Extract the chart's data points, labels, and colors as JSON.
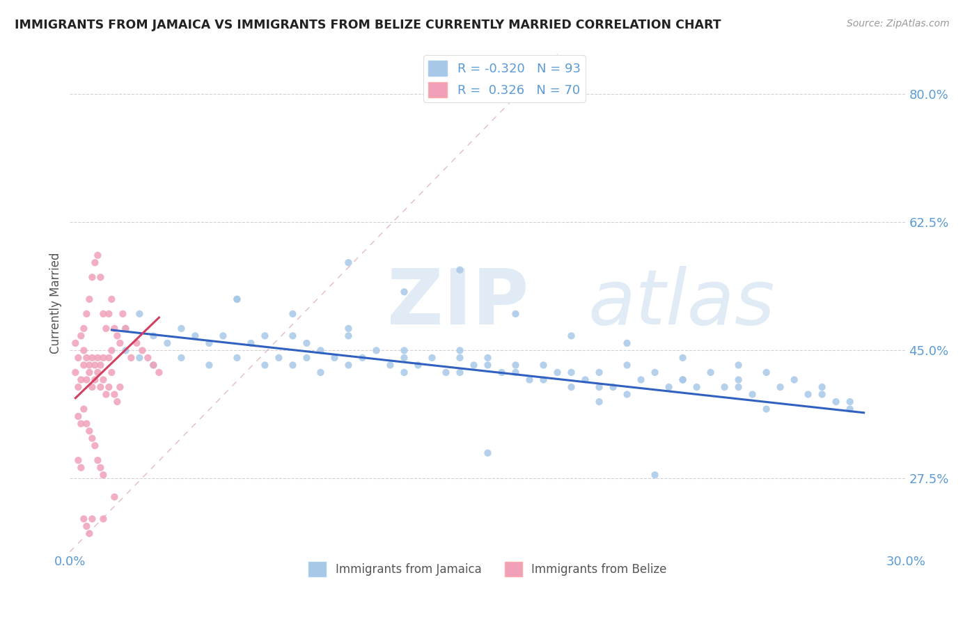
{
  "title": "IMMIGRANTS FROM JAMAICA VS IMMIGRANTS FROM BELIZE CURRENTLY MARRIED CORRELATION CHART",
  "source": "Source: ZipAtlas.com",
  "ylabel": "Currently Married",
  "legend_label_blue": "Immigrants from Jamaica",
  "legend_label_pink": "Immigrants from Belize",
  "R_blue": -0.32,
  "N_blue": 93,
  "R_pink": 0.326,
  "N_pink": 70,
  "xlim": [
    0.0,
    0.3
  ],
  "ylim": [
    0.175,
    0.855
  ],
  "yticks": [
    0.275,
    0.45,
    0.625,
    0.8
  ],
  "ytick_labels": [
    "27.5%",
    "45.0%",
    "62.5%",
    "80.0%"
  ],
  "xticks": [
    0.0,
    0.05,
    0.1,
    0.15,
    0.2,
    0.25,
    0.3
  ],
  "xtick_labels": [
    "0.0%",
    "",
    "",
    "",
    "",
    "",
    "30.0%"
  ],
  "color_blue": "#A8C8E8",
  "color_pink": "#F0A0B8",
  "color_line_blue": "#3060C0",
  "color_line_pink": "#D04060",
  "blue_scatter_x": [
    0.02,
    0.02,
    0.025,
    0.025,
    0.03,
    0.03,
    0.035,
    0.04,
    0.04,
    0.045,
    0.05,
    0.05,
    0.055,
    0.06,
    0.06,
    0.065,
    0.07,
    0.07,
    0.075,
    0.08,
    0.08,
    0.085,
    0.085,
    0.09,
    0.09,
    0.095,
    0.1,
    0.1,
    0.105,
    0.11,
    0.115,
    0.12,
    0.12,
    0.125,
    0.13,
    0.135,
    0.14,
    0.14,
    0.145,
    0.15,
    0.155,
    0.16,
    0.165,
    0.17,
    0.175,
    0.18,
    0.185,
    0.19,
    0.195,
    0.2,
    0.205,
    0.21,
    0.215,
    0.22,
    0.225,
    0.23,
    0.235,
    0.24,
    0.245,
    0.25,
    0.255,
    0.26,
    0.265,
    0.27,
    0.15,
    0.17,
    0.19,
    0.1,
    0.12,
    0.14,
    0.16,
    0.18,
    0.2,
    0.22,
    0.24,
    0.06,
    0.08,
    0.1,
    0.12,
    0.14,
    0.16,
    0.18,
    0.2,
    0.22,
    0.24,
    0.27,
    0.275,
    0.28,
    0.21,
    0.15,
    0.19,
    0.25,
    0.28
  ],
  "blue_scatter_y": [
    0.48,
    0.45,
    0.5,
    0.44,
    0.47,
    0.43,
    0.46,
    0.48,
    0.44,
    0.47,
    0.46,
    0.43,
    0.47,
    0.52,
    0.44,
    0.46,
    0.47,
    0.43,
    0.44,
    0.47,
    0.43,
    0.46,
    0.44,
    0.45,
    0.42,
    0.44,
    0.47,
    0.43,
    0.44,
    0.45,
    0.43,
    0.44,
    0.42,
    0.43,
    0.44,
    0.42,
    0.45,
    0.42,
    0.43,
    0.44,
    0.42,
    0.43,
    0.41,
    0.43,
    0.42,
    0.42,
    0.41,
    0.42,
    0.4,
    0.43,
    0.41,
    0.42,
    0.4,
    0.41,
    0.4,
    0.42,
    0.4,
    0.41,
    0.39,
    0.42,
    0.4,
    0.41,
    0.39,
    0.4,
    0.43,
    0.41,
    0.4,
    0.57,
    0.53,
    0.56,
    0.5,
    0.47,
    0.46,
    0.44,
    0.43,
    0.52,
    0.5,
    0.48,
    0.45,
    0.44,
    0.42,
    0.4,
    0.39,
    0.41,
    0.4,
    0.39,
    0.38,
    0.37,
    0.28,
    0.31,
    0.38,
    0.37,
    0.38
  ],
  "pink_scatter_x": [
    0.002,
    0.003,
    0.004,
    0.005,
    0.005,
    0.006,
    0.006,
    0.007,
    0.007,
    0.008,
    0.008,
    0.009,
    0.009,
    0.01,
    0.01,
    0.011,
    0.011,
    0.012,
    0.012,
    0.013,
    0.014,
    0.014,
    0.015,
    0.015,
    0.016,
    0.017,
    0.018,
    0.019,
    0.02,
    0.022,
    0.024,
    0.026,
    0.028,
    0.03,
    0.032,
    0.002,
    0.003,
    0.004,
    0.005,
    0.006,
    0.007,
    0.008,
    0.009,
    0.01,
    0.011,
    0.012,
    0.013,
    0.014,
    0.015,
    0.016,
    0.017,
    0.018,
    0.003,
    0.004,
    0.005,
    0.006,
    0.007,
    0.008,
    0.009,
    0.01,
    0.011,
    0.012,
    0.003,
    0.004,
    0.005,
    0.006,
    0.007,
    0.008,
    0.016,
    0.012
  ],
  "pink_scatter_y": [
    0.46,
    0.44,
    0.47,
    0.48,
    0.45,
    0.5,
    0.44,
    0.52,
    0.43,
    0.55,
    0.44,
    0.57,
    0.43,
    0.58,
    0.44,
    0.55,
    0.43,
    0.5,
    0.44,
    0.48,
    0.5,
    0.44,
    0.52,
    0.45,
    0.48,
    0.47,
    0.46,
    0.5,
    0.48,
    0.44,
    0.46,
    0.45,
    0.44,
    0.43,
    0.42,
    0.42,
    0.4,
    0.41,
    0.43,
    0.41,
    0.42,
    0.4,
    0.41,
    0.42,
    0.4,
    0.41,
    0.39,
    0.4,
    0.42,
    0.39,
    0.38,
    0.4,
    0.36,
    0.35,
    0.37,
    0.35,
    0.34,
    0.33,
    0.32,
    0.3,
    0.29,
    0.28,
    0.3,
    0.29,
    0.22,
    0.21,
    0.2,
    0.22,
    0.25,
    0.22
  ],
  "ref_line_x": [
    0.0,
    0.175
  ],
  "ref_line_y": [
    0.175,
    0.855
  ],
  "blue_line_x": [
    0.015,
    0.285
  ],
  "blue_line_y": [
    0.478,
    0.365
  ],
  "pink_line_x": [
    0.002,
    0.032
  ],
  "pink_line_y": [
    0.385,
    0.495
  ]
}
